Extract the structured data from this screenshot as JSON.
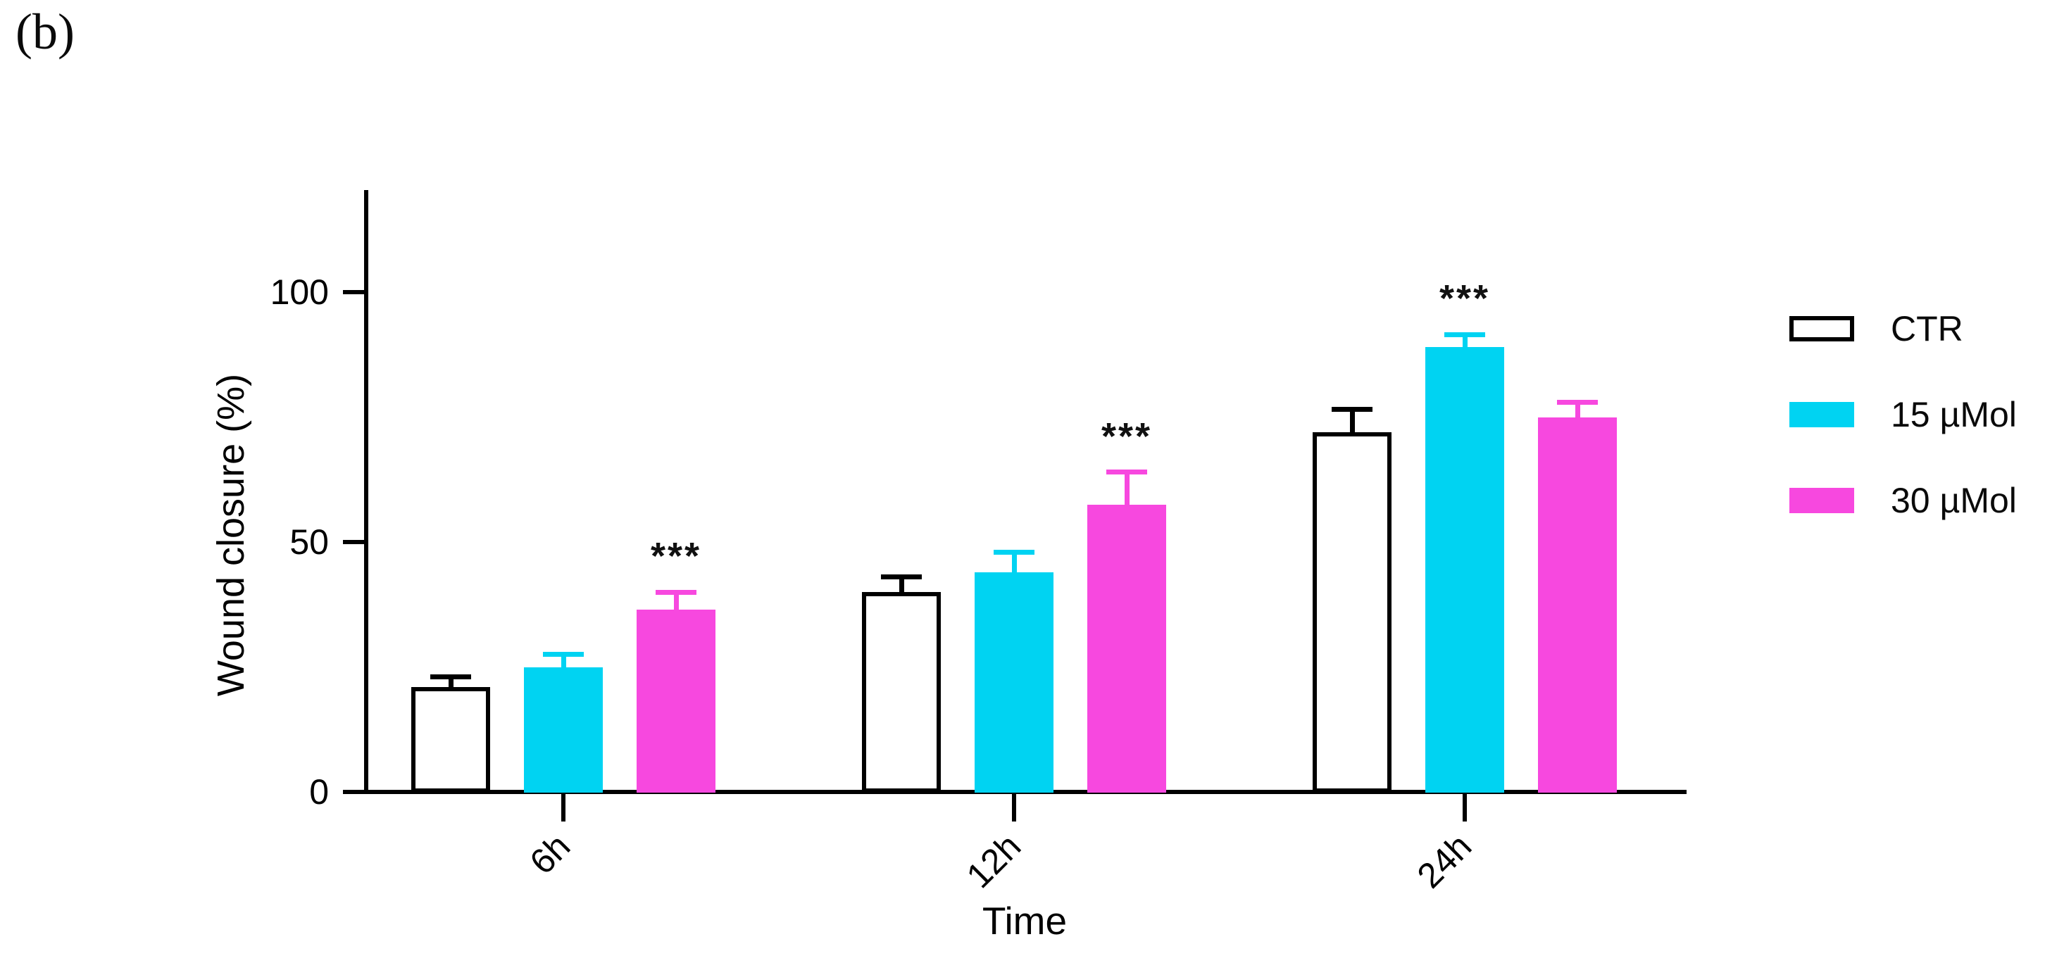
{
  "panel_label": "(b)",
  "chart_data": {
    "type": "bar",
    "title": "",
    "xlabel": "Time",
    "ylabel": "Wound closure (%)",
    "categories": [
      "6h",
      "12h",
      "24h"
    ],
    "series": [
      {
        "name": "CTR",
        "values": [
          21,
          40,
          72
        ],
        "errors": [
          2,
          3,
          4.5
        ],
        "fill": "#FFFFFF",
        "stroke": "#000000"
      },
      {
        "name": "15 µMol",
        "values": [
          25,
          44,
          89
        ],
        "errors": [
          2.5,
          4,
          2.5
        ],
        "fill": "#00D3F2",
        "stroke": "#00D3F2"
      },
      {
        "name": "30 µMol",
        "values": [
          36.5,
          57.5,
          75
        ],
        "errors": [
          3.5,
          6.5,
          3
        ],
        "fill": "#F748DF",
        "stroke": "#F748DF"
      }
    ],
    "significance": [
      {
        "category": "6h",
        "series": "30 µMol",
        "label": "***"
      },
      {
        "category": "12h",
        "series": "30 µMol",
        "label": "***"
      },
      {
        "category": "24h",
        "series": "15 µMol",
        "label": "***"
      }
    ],
    "yticks": [
      0,
      50,
      100
    ],
    "ylim": [
      0,
      120
    ],
    "grid": false,
    "legend_position": "right",
    "error_bar_style": "upper-whisker-with-cap"
  }
}
